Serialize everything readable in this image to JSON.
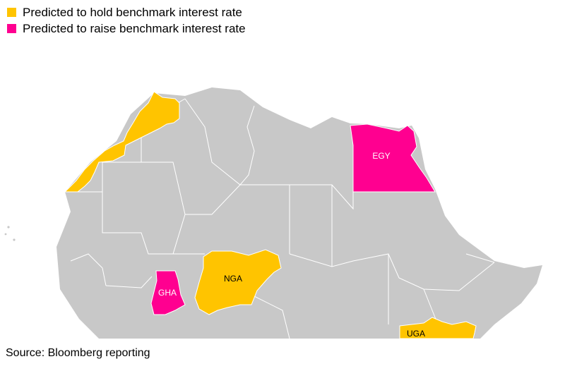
{
  "legend": {
    "items": [
      {
        "label": "Predicted to hold benchmark interest rate",
        "color": "#ffc400",
        "status": "hold"
      },
      {
        "label": "Predicted to raise benchmark interest rate",
        "color": "#ff0090",
        "status": "raise"
      }
    ]
  },
  "map": {
    "base_color": "#c8c8c8",
    "border_color": "#ffffff",
    "highlighted_countries": [
      {
        "code": "MAR",
        "label": "",
        "status": "hold",
        "color": "#ffc400"
      },
      {
        "code": "EGY",
        "label": "EGY",
        "status": "raise",
        "color": "#ff0090",
        "label_color": "#ffffff"
      },
      {
        "code": "GHA",
        "label": "GHA",
        "status": "raise",
        "color": "#ff0090",
        "label_color": "#ffffff"
      },
      {
        "code": "NGA",
        "label": "NGA",
        "status": "hold",
        "color": "#ffc400",
        "label_color": "#000000"
      },
      {
        "code": "UGA",
        "label": "UGA",
        "status": "hold",
        "color": "#ffc400",
        "label_color": "#000000"
      }
    ]
  },
  "footer": {
    "source": "Source: Bloomberg reporting"
  }
}
